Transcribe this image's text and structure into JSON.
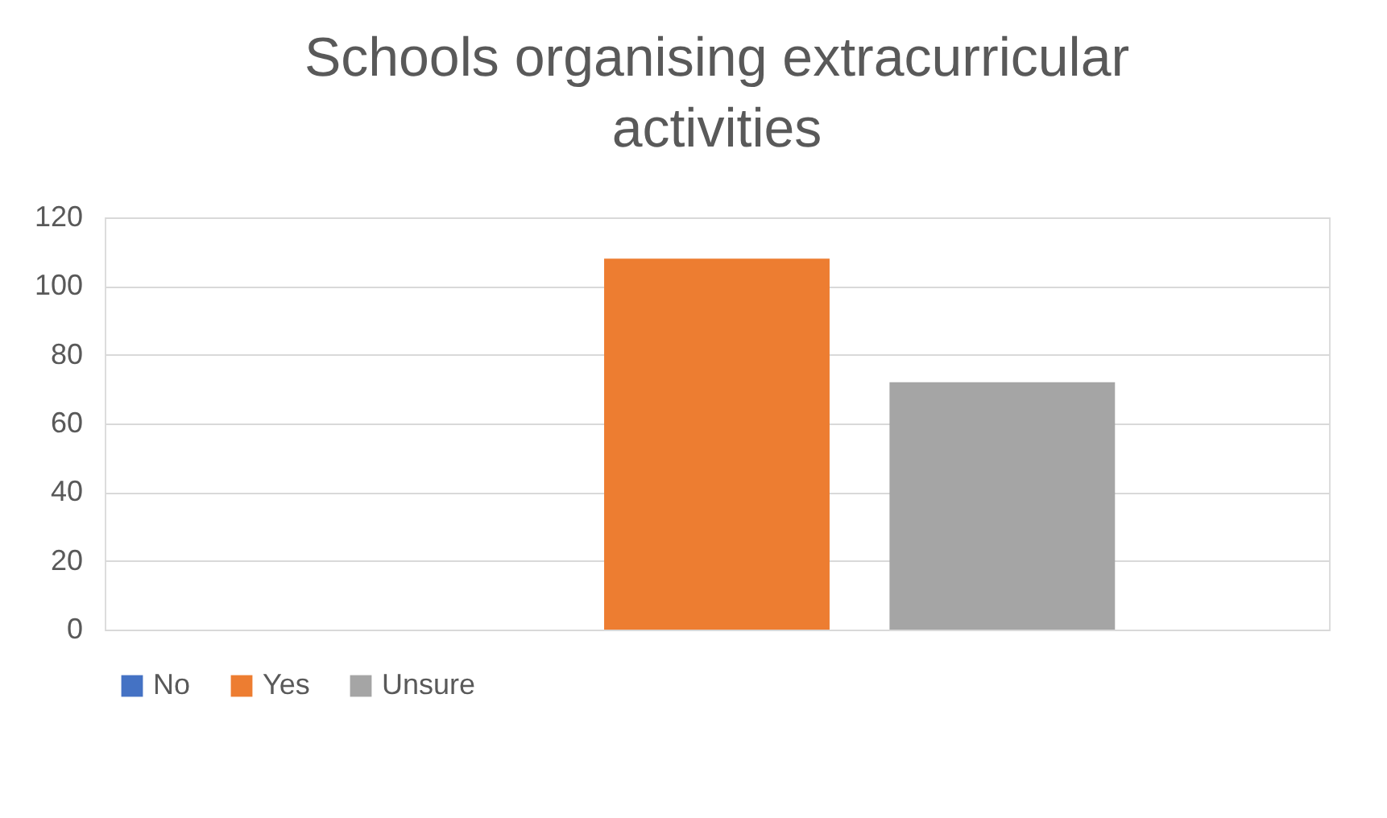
{
  "chart_data": {
    "type": "bar",
    "title": "Schools organising extracurricular activities",
    "categories": [
      null
    ],
    "series": [
      {
        "name": "No",
        "color": "#4472c4",
        "values": [
          0
        ]
      },
      {
        "name": "Yes",
        "color": "#ed7d31",
        "values": [
          108
        ]
      },
      {
        "name": "Unsure",
        "color": "#a5a5a5",
        "values": [
          72
        ]
      }
    ],
    "ylim": [
      0,
      120
    ],
    "yticks": [
      0,
      20,
      40,
      60,
      80,
      100,
      120
    ],
    "grid": "y",
    "legend": "bottom",
    "tick_labels": "y"
  }
}
